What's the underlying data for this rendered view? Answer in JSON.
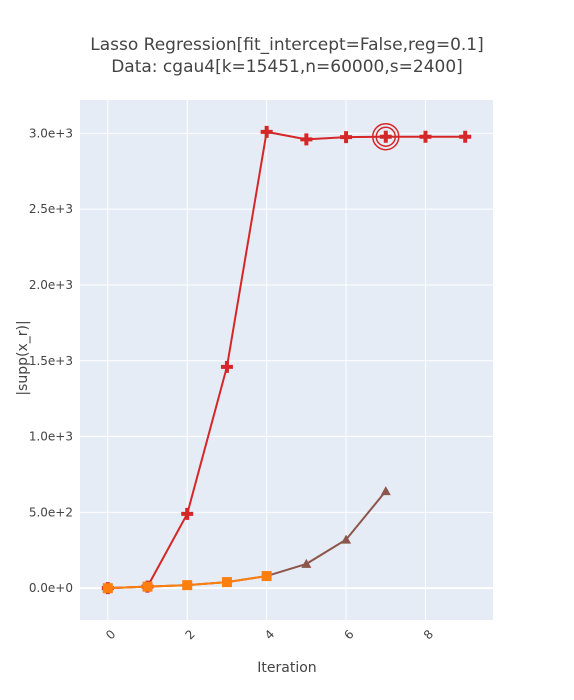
{
  "chart_data": {
    "type": "line",
    "title": "Lasso Regression[fit_intercept=False,reg=0.1]",
    "subtitle": "Data: cgau4[k=15451,n=60000,s=2400]",
    "xlabel": "Iteration",
    "ylabel": "|supp(x_r)|",
    "xlim": [
      -0.7,
      9.7
    ],
    "ylim": [
      -210,
      3220
    ],
    "x_ticks": [
      0,
      2,
      4,
      6,
      8
    ],
    "y_ticks": [
      0,
      500,
      1000,
      1500,
      2000,
      2500,
      3000
    ],
    "y_tick_labels": [
      "0.0e+0",
      "5.0e+2",
      "1.0e+3",
      "1.5e+3",
      "2.0e+3",
      "2.5e+3",
      "3.0e+3"
    ],
    "grid": true,
    "background": "#e5ecf6",
    "series": [
      {
        "color": "#d62728",
        "marker": "cross",
        "x": [
          0,
          1,
          2,
          3,
          4,
          5,
          6,
          7,
          8,
          9
        ],
        "y": [
          0,
          10,
          490,
          1460,
          3010,
          2960,
          2975,
          2978,
          2978,
          2978
        ]
      },
      {
        "color": "#8c564b",
        "marker": "triangle-up",
        "x": [
          0,
          1,
          2,
          3,
          4,
          5,
          6,
          7
        ],
        "y": [
          0,
          10,
          20,
          40,
          80,
          160,
          320,
          640
        ]
      },
      {
        "color": "#ff7f0e",
        "marker": "square",
        "x": [
          0,
          1,
          2,
          3,
          4
        ],
        "y": [
          0,
          10,
          20,
          40,
          80
        ]
      }
    ],
    "annotations": [
      {
        "type": "circle",
        "x": 7,
        "y": 2978,
        "color": "#d62728"
      }
    ]
  }
}
